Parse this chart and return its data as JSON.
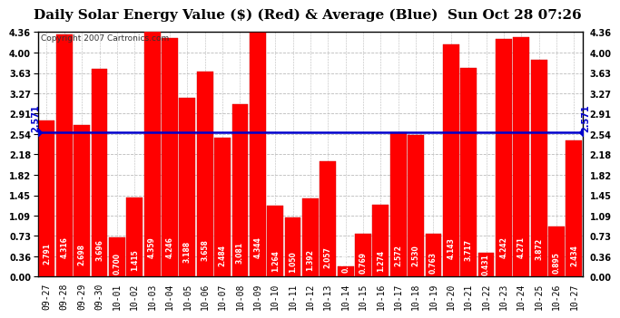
{
  "title": "Daily Solar Energy Value ($) (Red) & Average (Blue)  Sun Oct 28 07:26",
  "copyright": "Copyright 2007 Cartronics.com",
  "average": 2.571,
  "bar_color": "#ff0000",
  "avg_line_color": "#0000cc",
  "background_color": "#ffffff",
  "plot_bg_color": "#ffffff",
  "categories": [
    "09-27",
    "09-28",
    "09-29",
    "09-30",
    "10-01",
    "10-02",
    "10-03",
    "10-04",
    "10-05",
    "10-06",
    "10-07",
    "10-08",
    "10-09",
    "10-10",
    "10-11",
    "10-12",
    "10-13",
    "10-14",
    "10-15",
    "10-16",
    "10-17",
    "10-18",
    "10-19",
    "10-20",
    "10-21",
    "10-22",
    "10-23",
    "10-24",
    "10-25",
    "10-26",
    "10-27"
  ],
  "values": [
    2.791,
    4.316,
    2.698,
    3.696,
    0.7,
    1.415,
    4.359,
    4.246,
    3.188,
    3.658,
    2.484,
    3.081,
    4.344,
    1.264,
    1.05,
    1.392,
    2.057,
    0.176,
    0.769,
    1.274,
    2.572,
    2.53,
    0.763,
    4.143,
    3.717,
    0.431,
    4.242,
    4.271,
    3.872,
    0.895,
    2.434
  ],
  "yticks": [
    0.0,
    0.36,
    0.73,
    1.09,
    1.45,
    1.82,
    2.18,
    2.54,
    2.91,
    3.27,
    3.63,
    4.0,
    4.36
  ],
  "ylim": [
    0,
    4.36
  ],
  "grid_color": "#bbbbbb",
  "title_fontsize": 11,
  "tick_fontsize": 7,
  "copyright_fontsize": 6.5,
  "avg_label_fontsize": 7,
  "bar_label_fontsize": 5.5
}
